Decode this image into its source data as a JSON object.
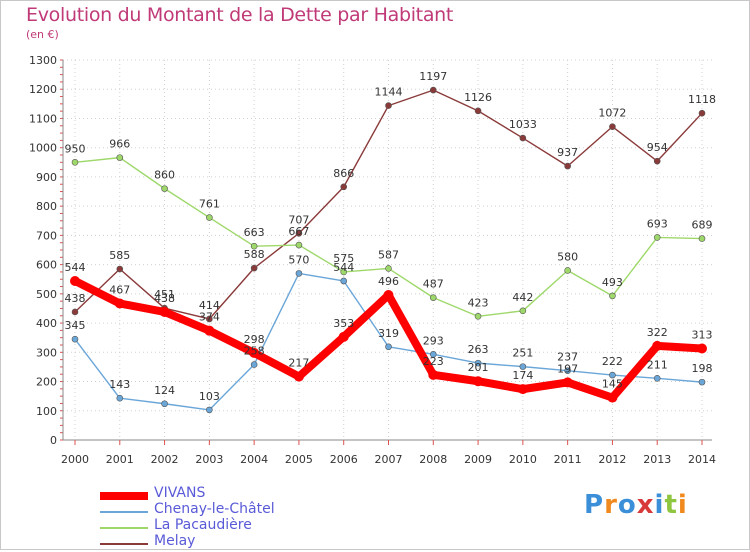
{
  "title": "Evolution du Montant de la Dette par Habitant",
  "unit": "(en €)",
  "logo_text": "Proxiti",
  "chart_data": {
    "type": "line",
    "x": [
      2000,
      2001,
      2002,
      2003,
      2004,
      2005,
      2006,
      2007,
      2008,
      2009,
      2010,
      2011,
      2012,
      2013,
      2014
    ],
    "ylim": [
      0,
      1300
    ],
    "yticks": [
      0,
      100,
      200,
      300,
      400,
      500,
      600,
      700,
      800,
      900,
      1000,
      1100,
      1200,
      1300
    ],
    "grid": true,
    "legend_position": "bottom-left",
    "series": [
      {
        "name": "VIVANS",
        "color": "#ff0000",
        "values": [
          544,
          467,
          438,
          374,
          298,
          217,
          353,
          496,
          223,
          201,
          174,
          197,
          145,
          322,
          313
        ]
      },
      {
        "name": "Chenay-le-Châtel",
        "color": "#6aa6d8",
        "values": [
          345,
          143,
          124,
          103,
          258,
          570,
          544,
          319,
          293,
          263,
          251,
          237,
          222,
          211,
          198
        ]
      },
      {
        "name": "La Pacaudière",
        "color": "#9ed86a",
        "values": [
          950,
          966,
          860,
          761,
          663,
          667,
          575,
          587,
          487,
          423,
          442,
          580,
          493,
          693,
          689
        ]
      },
      {
        "name": "Melay",
        "color": "#8b3a3a",
        "values": [
          438,
          585,
          451,
          414,
          588,
          707,
          866,
          1144,
          1197,
          1126,
          1033,
          937,
          1072,
          954,
          1118
        ]
      }
    ],
    "labels": [
      [
        "544",
        "467",
        "438",
        "374",
        "298",
        "217",
        "353",
        "496",
        "223",
        "201",
        "174",
        "197",
        "145",
        "322",
        "313"
      ],
      [
        "345",
        "143",
        "124",
        "103",
        "258",
        "570",
        "544",
        "319",
        "293",
        "263",
        "251",
        "237",
        "222",
        "211",
        "198"
      ],
      [
        "950",
        "966",
        "860",
        "761",
        "663",
        "667",
        "575",
        "587",
        "487",
        "423",
        "442",
        "580",
        "493",
        "693",
        "689"
      ],
      [
        "438",
        "585",
        "451",
        "414",
        "588",
        "707",
        "866",
        "1144",
        "1197",
        "1126",
        "1033",
        "937",
        "1072",
        "954",
        "1118"
      ]
    ]
  }
}
